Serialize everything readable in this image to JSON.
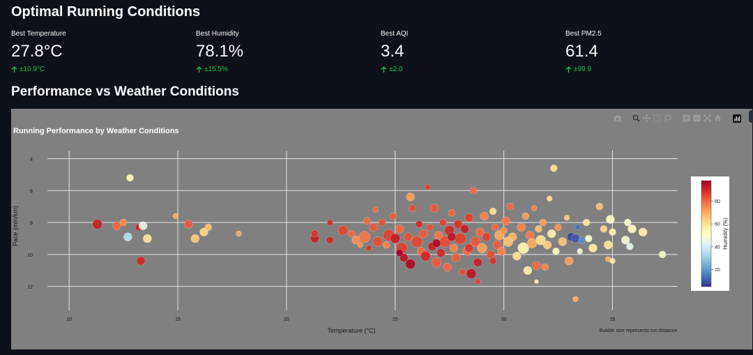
{
  "header": {
    "title": "Optimal Running Conditions"
  },
  "metrics": [
    {
      "label": "Best Temperature",
      "value": "27.8°C",
      "delta": "±10.9°C"
    },
    {
      "label": "Best Humidity",
      "value": "78.1%",
      "delta": "±15.5%"
    },
    {
      "label": "Best AQI",
      "value": "3.4",
      "delta": "±2.0"
    },
    {
      "label": "Best PM2.5",
      "value": "61.4",
      "delta": "±99.9"
    }
  ],
  "section": {
    "title": "Performance vs Weather Conditions"
  },
  "colors": {
    "page_bg": "#0e1117",
    "chart_bg": "#808080",
    "delta_green": "#21c354"
  },
  "chart_data": {
    "type": "scatter",
    "title": "Running Performance by Weather Conditions",
    "xlabel": "Temperature (°C)",
    "ylabel": "Pace (min/km)",
    "xlim": [
      9,
      38
    ],
    "ylim": [
      13.5,
      3.5
    ],
    "y_reversed": true,
    "xticks": [
      10,
      15,
      20,
      25,
      30,
      35
    ],
    "yticks": [
      4,
      6,
      8,
      10,
      12
    ],
    "colorbar": {
      "title": "Humidity (%)",
      "ticks": [
        20,
        40,
        60,
        80
      ],
      "range": [
        5,
        98
      ],
      "colorscale": "RdYlBu reversed"
    },
    "annotation": "Bubble size represents run distance",
    "points": [
      {
        "x": 11.3,
        "y": 8.1,
        "h": 92,
        "s": 7
      },
      {
        "x": 12.2,
        "y": 8.2,
        "h": 80,
        "s": 6
      },
      {
        "x": 12.5,
        "y": 8.0,
        "h": 75,
        "s": 5
      },
      {
        "x": 12.8,
        "y": 5.2,
        "h": 52,
        "s": 5
      },
      {
        "x": 12.7,
        "y": 8.9,
        "h": 35,
        "s": 6
      },
      {
        "x": 13.2,
        "y": 8.3,
        "h": 90,
        "s": 5
      },
      {
        "x": 13.4,
        "y": 8.2,
        "h": 45,
        "s": 6
      },
      {
        "x": 13.6,
        "y": 9.0,
        "h": 58,
        "s": 6
      },
      {
        "x": 13.3,
        "y": 10.4,
        "h": 90,
        "s": 6
      },
      {
        "x": 14.9,
        "y": 7.6,
        "h": 70,
        "s": 4
      },
      {
        "x": 15.5,
        "y": 8.1,
        "h": 82,
        "s": 6
      },
      {
        "x": 15.8,
        "y": 9.0,
        "h": 65,
        "s": 6
      },
      {
        "x": 16.2,
        "y": 8.6,
        "h": 62,
        "s": 6
      },
      {
        "x": 16.4,
        "y": 8.3,
        "h": 66,
        "s": 5
      },
      {
        "x": 17.8,
        "y": 8.7,
        "h": 70,
        "s": 4
      },
      {
        "x": 21.3,
        "y": 9.0,
        "h": 92,
        "s": 6
      },
      {
        "x": 21.3,
        "y": 8.7,
        "h": 88,
        "s": 5
      },
      {
        "x": 22.0,
        "y": 9.1,
        "h": 90,
        "s": 5
      },
      {
        "x": 22.0,
        "y": 8.0,
        "h": 90,
        "s": 4
      },
      {
        "x": 22.6,
        "y": 8.5,
        "h": 85,
        "s": 7
      },
      {
        "x": 23.0,
        "y": 8.7,
        "h": 80,
        "s": 5
      },
      {
        "x": 23.2,
        "y": 9.1,
        "h": 74,
        "s": 6
      },
      {
        "x": 23.4,
        "y": 9.4,
        "h": 74,
        "s": 4
      },
      {
        "x": 23.6,
        "y": 8.9,
        "h": 78,
        "s": 8
      },
      {
        "x": 23.8,
        "y": 9.6,
        "h": 88,
        "s": 4
      },
      {
        "x": 23.7,
        "y": 7.9,
        "h": 80,
        "s": 5
      },
      {
        "x": 24.0,
        "y": 8.3,
        "h": 82,
        "s": 6
      },
      {
        "x": 24.2,
        "y": 9.2,
        "h": 84,
        "s": 7
      },
      {
        "x": 24.1,
        "y": 7.2,
        "h": 80,
        "s": 4
      },
      {
        "x": 24.4,
        "y": 8.0,
        "h": 84,
        "s": 5
      },
      {
        "x": 24.6,
        "y": 9.4,
        "h": 76,
        "s": 5
      },
      {
        "x": 24.7,
        "y": 8.8,
        "h": 86,
        "s": 8
      },
      {
        "x": 24.9,
        "y": 7.6,
        "h": 82,
        "s": 5
      },
      {
        "x": 25.0,
        "y": 9.0,
        "h": 92,
        "s": 7
      },
      {
        "x": 25.2,
        "y": 8.4,
        "h": 80,
        "s": 6
      },
      {
        "x": 25.3,
        "y": 9.6,
        "h": 86,
        "s": 8
      },
      {
        "x": 25.4,
        "y": 10.2,
        "h": 94,
        "s": 6
      },
      {
        "x": 25.6,
        "y": 8.9,
        "h": 84,
        "s": 6
      },
      {
        "x": 25.7,
        "y": 10.6,
        "h": 96,
        "s": 7
      },
      {
        "x": 25.7,
        "y": 6.4,
        "h": 72,
        "s": 6
      },
      {
        "x": 25.8,
        "y": 7.1,
        "h": 84,
        "s": 5
      },
      {
        "x": 26.0,
        "y": 9.2,
        "h": 85,
        "s": 8
      },
      {
        "x": 26.1,
        "y": 8.1,
        "h": 90,
        "s": 5
      },
      {
        "x": 26.2,
        "y": 9.8,
        "h": 80,
        "s": 6
      },
      {
        "x": 26.3,
        "y": 8.7,
        "h": 82,
        "s": 6
      },
      {
        "x": 26.4,
        "y": 10.1,
        "h": 90,
        "s": 7
      },
      {
        "x": 26.5,
        "y": 5.8,
        "h": 86,
        "s": 4
      },
      {
        "x": 26.6,
        "y": 8.3,
        "h": 84,
        "s": 5
      },
      {
        "x": 26.7,
        "y": 9.5,
        "h": 92,
        "s": 6
      },
      {
        "x": 26.8,
        "y": 7.1,
        "h": 82,
        "s": 6
      },
      {
        "x": 26.9,
        "y": 10.5,
        "h": 82,
        "s": 7
      },
      {
        "x": 27.0,
        "y": 8.8,
        "h": 78,
        "s": 6
      },
      {
        "x": 27.1,
        "y": 9.9,
        "h": 90,
        "s": 6
      },
      {
        "x": 27.2,
        "y": 8.0,
        "h": 86,
        "s": 5
      },
      {
        "x": 27.3,
        "y": 9.2,
        "h": 84,
        "s": 8
      },
      {
        "x": 27.4,
        "y": 10.8,
        "h": 80,
        "s": 6
      },
      {
        "x": 27.5,
        "y": 8.5,
        "h": 90,
        "s": 7
      },
      {
        "x": 27.6,
        "y": 7.4,
        "h": 80,
        "s": 5
      },
      {
        "x": 27.7,
        "y": 9.6,
        "h": 76,
        "s": 6
      },
      {
        "x": 27.8,
        "y": 10.2,
        "h": 82,
        "s": 6
      },
      {
        "x": 27.9,
        "y": 8.1,
        "h": 88,
        "s": 6
      },
      {
        "x": 28.0,
        "y": 9.0,
        "h": 86,
        "s": 8
      },
      {
        "x": 28.1,
        "y": 11.1,
        "h": 84,
        "s": 5
      },
      {
        "x": 28.2,
        "y": 8.4,
        "h": 92,
        "s": 6
      },
      {
        "x": 28.3,
        "y": 9.8,
        "h": 80,
        "s": 6
      },
      {
        "x": 28.4,
        "y": 7.7,
        "h": 86,
        "s": 6
      },
      {
        "x": 28.5,
        "y": 11.2,
        "h": 94,
        "s": 7
      },
      {
        "x": 28.6,
        "y": 6.0,
        "h": 80,
        "s": 5
      },
      {
        "x": 28.7,
        "y": 9.2,
        "h": 82,
        "s": 7
      },
      {
        "x": 28.8,
        "y": 10.5,
        "h": 92,
        "s": 6
      },
      {
        "x": 28.9,
        "y": 8.6,
        "h": 80,
        "s": 6
      },
      {
        "x": 29.0,
        "y": 9.6,
        "h": 72,
        "s": 7
      },
      {
        "x": 28.8,
        "y": 11.7,
        "h": 86,
        "s": 4
      },
      {
        "x": 29.1,
        "y": 7.6,
        "h": 76,
        "s": 6
      },
      {
        "x": 29.2,
        "y": 8.9,
        "h": 86,
        "s": 6
      },
      {
        "x": 29.4,
        "y": 10.0,
        "h": 84,
        "s": 6
      },
      {
        "x": 29.5,
        "y": 7.3,
        "h": 60,
        "s": 5
      },
      {
        "x": 29.6,
        "y": 8.3,
        "h": 80,
        "s": 5
      },
      {
        "x": 29.7,
        "y": 9.4,
        "h": 82,
        "s": 6
      },
      {
        "x": 29.8,
        "y": 8.8,
        "h": 70,
        "s": 7
      },
      {
        "x": 29.9,
        "y": 9.8,
        "h": 76,
        "s": 6
      },
      {
        "x": 30.0,
        "y": 8.5,
        "h": 74,
        "s": 5
      },
      {
        "x": 30.1,
        "y": 7.9,
        "h": 78,
        "s": 6
      },
      {
        "x": 30.2,
        "y": 9.2,
        "h": 66,
        "s": 7
      },
      {
        "x": 30.3,
        "y": 7.0,
        "h": 80,
        "s": 5
      },
      {
        "x": 30.4,
        "y": 8.9,
        "h": 68,
        "s": 6
      },
      {
        "x": 30.6,
        "y": 10.1,
        "h": 60,
        "s": 6
      },
      {
        "x": 30.8,
        "y": 8.3,
        "h": 76,
        "s": 6
      },
      {
        "x": 30.9,
        "y": 9.6,
        "h": 54,
        "s": 8
      },
      {
        "x": 31.0,
        "y": 7.6,
        "h": 72,
        "s": 5
      },
      {
        "x": 31.1,
        "y": 11.0,
        "h": 56,
        "s": 6
      },
      {
        "x": 31.2,
        "y": 8.8,
        "h": 78,
        "s": 6
      },
      {
        "x": 31.3,
        "y": 9.3,
        "h": 70,
        "s": 7
      },
      {
        "x": 31.4,
        "y": 7.1,
        "h": 76,
        "s": 4
      },
      {
        "x": 31.5,
        "y": 10.7,
        "h": 80,
        "s": 6
      },
      {
        "x": 31.6,
        "y": 8.4,
        "h": 66,
        "s": 5
      },
      {
        "x": 31.7,
        "y": 9.1,
        "h": 60,
        "s": 7
      },
      {
        "x": 31.8,
        "y": 8.0,
        "h": 72,
        "s": 5
      },
      {
        "x": 31.9,
        "y": 10.8,
        "h": 76,
        "s": 5
      },
      {
        "x": 32.0,
        "y": 9.4,
        "h": 64,
        "s": 6
      },
      {
        "x": 32.1,
        "y": 6.5,
        "h": 60,
        "s": 4
      },
      {
        "x": 32.2,
        "y": 8.7,
        "h": 56,
        "s": 6
      },
      {
        "x": 32.3,
        "y": 4.6,
        "h": 60,
        "s": 5
      },
      {
        "x": 32.4,
        "y": 9.8,
        "h": 52,
        "s": 5
      },
      {
        "x": 32.5,
        "y": 8.3,
        "h": 74,
        "s": 5
      },
      {
        "x": 32.7,
        "y": 9.2,
        "h": 66,
        "s": 6
      },
      {
        "x": 32.9,
        "y": 7.7,
        "h": 64,
        "s": 4
      },
      {
        "x": 33.0,
        "y": 10.4,
        "h": 72,
        "s": 6
      },
      {
        "x": 33.1,
        "y": 8.9,
        "h": 8,
        "s": 6
      },
      {
        "x": 33.3,
        "y": 9.0,
        "h": 10,
        "s": 6
      },
      {
        "x": 33.4,
        "y": 8.3,
        "h": 14,
        "s": 4
      },
      {
        "x": 33.6,
        "y": 9.1,
        "h": 18,
        "s": 5
      },
      {
        "x": 33.5,
        "y": 9.8,
        "h": 48,
        "s": 4
      },
      {
        "x": 33.9,
        "y": 9.0,
        "h": 50,
        "s": 5
      },
      {
        "x": 33.8,
        "y": 8.0,
        "h": 58,
        "s": 5
      },
      {
        "x": 33.3,
        "y": 12.8,
        "h": 70,
        "s": 4
      },
      {
        "x": 34.1,
        "y": 9.6,
        "h": 56,
        "s": 6
      },
      {
        "x": 34.4,
        "y": 7.0,
        "h": 66,
        "s": 5
      },
      {
        "x": 34.6,
        "y": 8.4,
        "h": 62,
        "s": 5
      },
      {
        "x": 34.8,
        "y": 9.4,
        "h": 58,
        "s": 6
      },
      {
        "x": 34.9,
        "y": 7.8,
        "h": 52,
        "s": 6
      },
      {
        "x": 35.0,
        "y": 8.6,
        "h": 54,
        "s": 5
      },
      {
        "x": 34.8,
        "y": 10.3,
        "h": 70,
        "s": 4
      },
      {
        "x": 35.0,
        "y": 10.4,
        "h": 56,
        "s": 4
      },
      {
        "x": 35.7,
        "y": 8.0,
        "h": 50,
        "s": 5
      },
      {
        "x": 35.9,
        "y": 8.4,
        "h": 52,
        "s": 6
      },
      {
        "x": 35.6,
        "y": 9.1,
        "h": 48,
        "s": 6
      },
      {
        "x": 35.8,
        "y": 9.5,
        "h": 44,
        "s": 5
      },
      {
        "x": 36.4,
        "y": 8.6,
        "h": 56,
        "s": 6
      },
      {
        "x": 37.3,
        "y": 10.0,
        "h": 48,
        "s": 5
      },
      {
        "x": 31.5,
        "y": 11.7,
        "h": 56,
        "s": 3
      },
      {
        "x": 29.5,
        "y": 10.4,
        "h": 88,
        "s": 5
      },
      {
        "x": 26.9,
        "y": 9.3,
        "h": 96,
        "s": 6
      },
      {
        "x": 25.2,
        "y": 9.9,
        "h": 98,
        "s": 5
      },
      {
        "x": 27.6,
        "y": 8.9,
        "h": 94,
        "s": 6
      },
      {
        "x": 28.4,
        "y": 9.6,
        "h": 88,
        "s": 6
      }
    ]
  }
}
